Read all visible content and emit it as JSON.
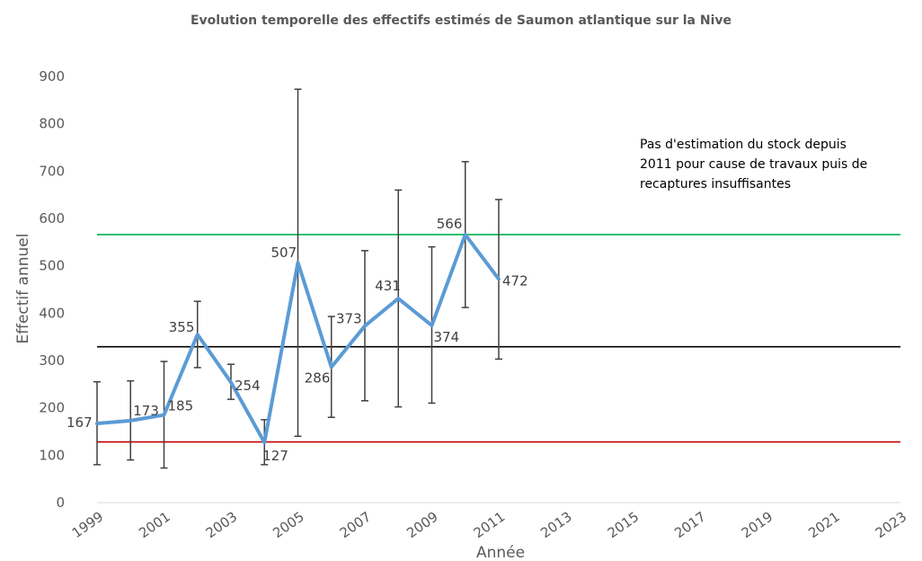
{
  "chart_data": {
    "type": "line",
    "title": "Evolution temporelle des effectifs estimés de Saumon atlantique sur la Nive",
    "xlabel": "Année",
    "ylabel": "Effectif annuel",
    "xlim": [
      1999,
      2023
    ],
    "ylim": [
      0,
      900
    ],
    "x_ticks": [
      "1999",
      "2001",
      "2003",
      "2005",
      "2007",
      "2009",
      "2011",
      "2013",
      "2015",
      "2017",
      "2019",
      "2021",
      "2023"
    ],
    "y_ticks": [
      "0",
      "100",
      "200",
      "300",
      "400",
      "500",
      "600",
      "700",
      "800",
      "900"
    ],
    "grid": false,
    "series": [
      {
        "color": "#5B9BD5",
        "x": [
          1999,
          2000,
          2001,
          2002,
          2003,
          2004,
          2005,
          2006,
          2007,
          2008,
          2009,
          2010,
          2011
        ],
        "values": [
          167,
          173,
          185,
          355,
          254,
          127,
          507,
          286,
          373,
          431,
          374,
          566,
          472
        ],
        "labels": [
          "167",
          "173",
          "185",
          "355",
          "254",
          "127",
          "507",
          "286",
          "373",
          "431",
          "374",
          "566",
          "472"
        ],
        "error_low": [
          80,
          90,
          73,
          285,
          218,
          80,
          140,
          180,
          215,
          202,
          210,
          412,
          303
        ],
        "error_high": [
          255,
          257,
          298,
          425,
          292,
          175,
          873,
          393,
          532,
          660,
          540,
          720,
          640
        ]
      }
    ],
    "reference_lines": [
      {
        "y": 566,
        "color": "#00B050"
      },
      {
        "y": 329,
        "color": "#000000"
      },
      {
        "y": 128,
        "color": "#C00000"
      }
    ],
    "annotation": [
      "Pas d'estimation du stock depuis",
      "2011 pour cause de travaux puis de",
      "recaptures insuffisantes"
    ]
  }
}
